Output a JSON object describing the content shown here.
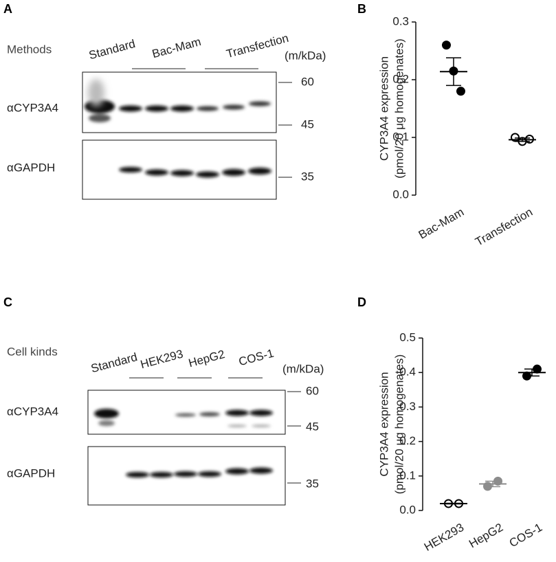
{
  "blots": [
    {
      "label": "A",
      "row_title": "Methods",
      "lanes": [
        "Standard",
        "Bac-Mam",
        "Transfection"
      ],
      "unit": "(m/kDa)",
      "rows": [
        "αCYP3A4",
        "αGAPDH"
      ],
      "markers": [
        "60",
        "45",
        "35"
      ]
    },
    {
      "label": "C",
      "row_title": "Cell kinds",
      "lanes": [
        "Standard",
        "HEK293",
        "HepG2",
        "COS-1"
      ],
      "unit": "(m/kDa)",
      "rows": [
        "αCYP3A4",
        "αGAPDH"
      ],
      "markers": [
        "60",
        "45",
        "35"
      ]
    }
  ],
  "chart_data": [
    {
      "type": "dot",
      "label": "B",
      "y_label": [
        "CYP3A4 expression",
        "(pmol/20 μg homogenates)"
      ],
      "categories": [
        "Bac-Mam",
        "Transfection"
      ],
      "points": [
        [
          0.26,
          0.215,
          0.18
        ],
        [
          0.1,
          0.093,
          0.097
        ]
      ],
      "means": [
        0.214,
        0.096
      ],
      "sem": [
        0.024,
        0.003
      ],
      "colors": [
        "#000000",
        "#000000"
      ],
      "marker_styles": [
        "filled",
        "open"
      ],
      "ylim": [
        0,
        0.3
      ],
      "yticks": [
        {
          "value": 0,
          "label": "0.0"
        },
        0.1,
        0.2,
        0.3
      ]
    },
    {
      "type": "dot",
      "label": "D",
      "y_label": [
        "CYP3A4 expression",
        "(pmol/20 μg homogenates)"
      ],
      "categories": [
        "HEK293",
        "HepG2",
        "COS-1"
      ],
      "points": [
        [
          0.02,
          0.02
        ],
        [
          0.07,
          0.085
        ],
        [
          0.39,
          0.41
        ]
      ],
      "means": [
        0.02,
        0.077,
        0.4
      ],
      "sem": [
        0.001,
        0.008,
        0.01
      ],
      "colors": [
        "#000000",
        "#8c8c8c",
        "#000000"
      ],
      "marker_styles": [
        "open",
        "filled",
        "filled"
      ],
      "ylim": [
        0,
        0.5
      ],
      "yticks": [
        {
          "value": 0,
          "label": "0.0"
        },
        0.1,
        0.2,
        0.3,
        0.4,
        0.5
      ]
    }
  ]
}
